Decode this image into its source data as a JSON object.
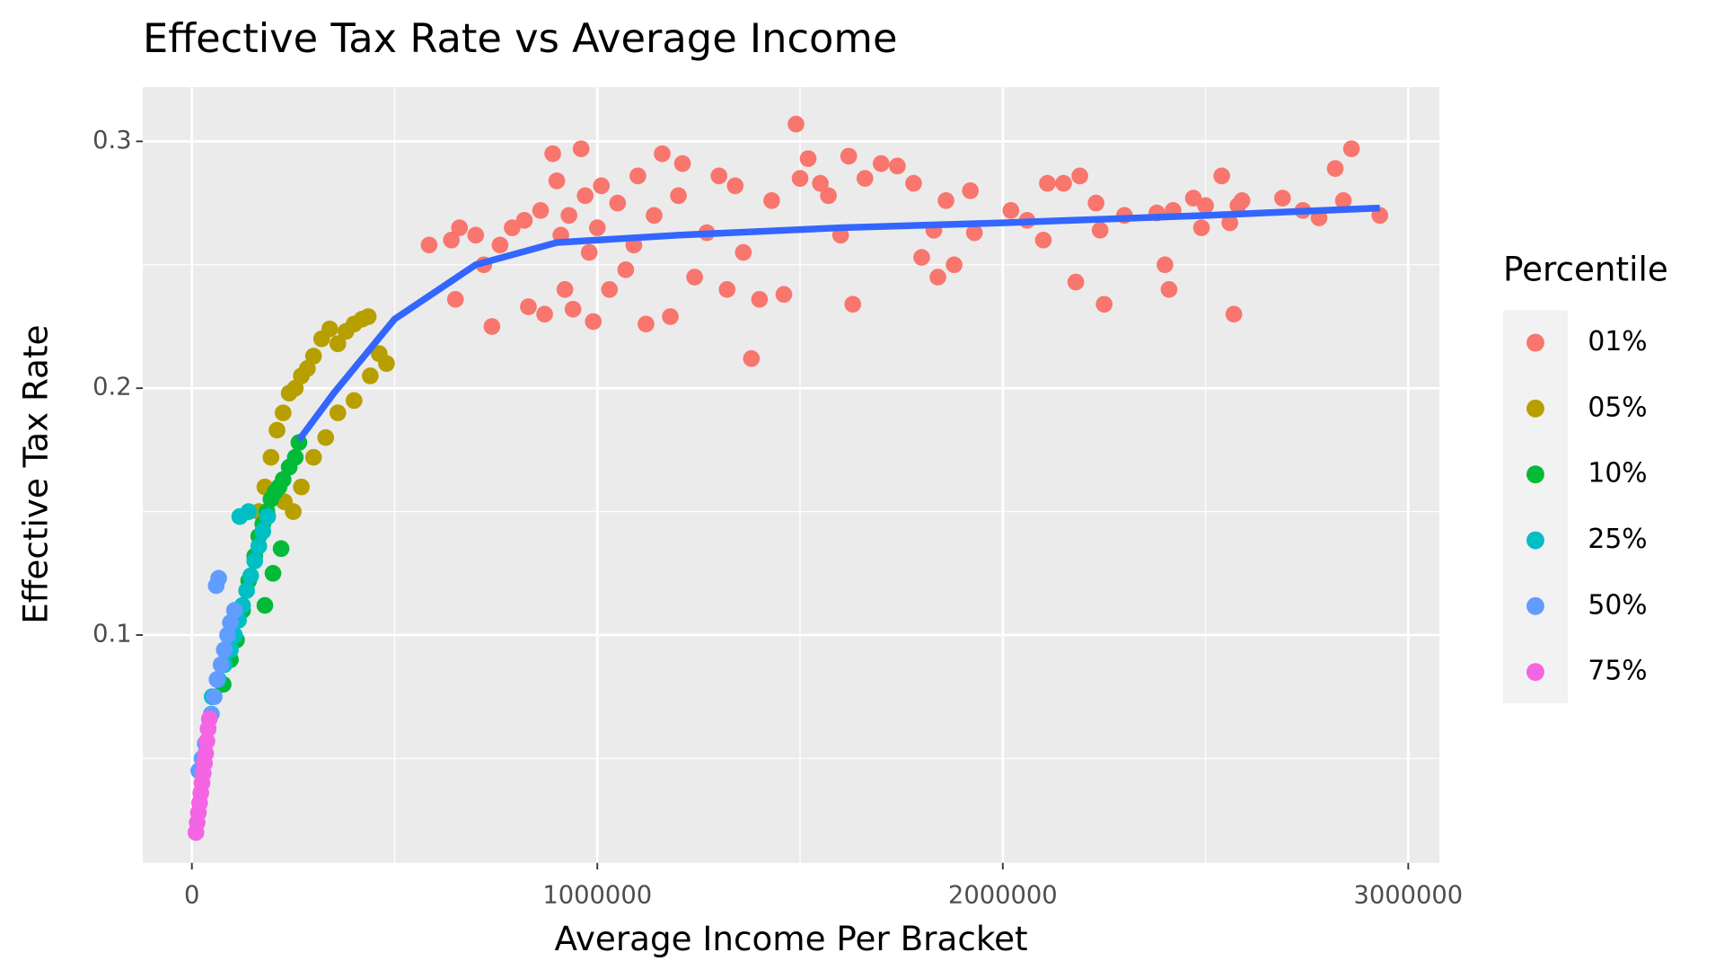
{
  "chart_data": {
    "type": "scatter",
    "title": "Effective Tax Rate vs Average Income",
    "x_label": "Average Income Per Bracket",
    "y_label": "Effective Tax Rate",
    "legend_title": "Percentile",
    "legend": "right",
    "grid": true,
    "xlim": [
      -121000,
      3077000
    ],
    "ylim": [
      0.0077,
      0.322
    ],
    "xticks": [
      0,
      1000000,
      2000000,
      3000000
    ],
    "yticks": [
      0.1,
      0.2,
      0.3
    ],
    "xminor": [
      500000,
      1500000,
      2500000
    ],
    "yminor": [
      0.05,
      0.15,
      0.25
    ],
    "series": [
      {
        "name": "01%",
        "color": "#F8766D",
        "x": [
          585000,
          640000,
          660000,
          650000,
          700000,
          720000,
          740000,
          760000,
          790000,
          820000,
          830000,
          860000,
          870000,
          890000,
          900000,
          910000,
          920000,
          930000,
          940000,
          960000,
          970000,
          980000,
          990000,
          1000000,
          1010000,
          1030000,
          1050000,
          1070000,
          1090000,
          1100000,
          1120000,
          1140000,
          1160000,
          1180000,
          1200000,
          1210000,
          1240000,
          1270000,
          1300000,
          1320000,
          1340000,
          1360000,
          1380000,
          1400000,
          1430000,
          1460000,
          1490000,
          1500000,
          1520000,
          1550000,
          1570000,
          1600000,
          1620000,
          1630000,
          1660000,
          1700000,
          1740000,
          1780000,
          1800000,
          1830000,
          1840000,
          1860000,
          1880000,
          1920000,
          1930000,
          2020000,
          2060000,
          2100000,
          2110000,
          2150000,
          2180000,
          2190000,
          2230000,
          2240000,
          2250000,
          2300000,
          2380000,
          2420000,
          2400000,
          2410000,
          2470000,
          2490000,
          2500000,
          2540000,
          2560000,
          2570000,
          2580000,
          2590000,
          2690000,
          2740000,
          2780000,
          2820000,
          2840000,
          2860000,
          2930000
        ],
        "values": [
          0.258,
          0.26,
          0.265,
          0.236,
          0.262,
          0.25,
          0.225,
          0.258,
          0.265,
          0.268,
          0.233,
          0.272,
          0.23,
          0.295,
          0.284,
          0.262,
          0.24,
          0.27,
          0.232,
          0.297,
          0.278,
          0.255,
          0.227,
          0.265,
          0.282,
          0.24,
          0.275,
          0.248,
          0.258,
          0.286,
          0.226,
          0.27,
          0.295,
          0.229,
          0.278,
          0.291,
          0.245,
          0.263,
          0.286,
          0.24,
          0.282,
          0.255,
          0.212,
          0.236,
          0.276,
          0.238,
          0.307,
          0.285,
          0.293,
          0.283,
          0.278,
          0.262,
          0.294,
          0.234,
          0.285,
          0.291,
          0.29,
          0.283,
          0.253,
          0.264,
          0.245,
          0.276,
          0.25,
          0.28,
          0.263,
          0.272,
          0.268,
          0.26,
          0.283,
          0.283,
          0.243,
          0.286,
          0.275,
          0.264,
          0.234,
          0.27,
          0.271,
          0.272,
          0.25,
          0.24,
          0.277,
          0.265,
          0.274,
          0.286,
          0.267,
          0.23,
          0.274,
          0.276,
          0.277,
          0.272,
          0.269,
          0.289,
          0.276,
          0.297,
          0.27
        ]
      },
      {
        "name": "05%",
        "color": "#B79F00",
        "x": [
          165000,
          180000,
          195000,
          210000,
          225000,
          240000,
          255000,
          270000,
          285000,
          300000,
          320000,
          340000,
          360000,
          380000,
          400000,
          420000,
          435000,
          228000,
          250000,
          270000,
          300000,
          330000,
          360000,
          400000,
          440000,
          462000,
          480000
        ],
        "values": [
          0.15,
          0.16,
          0.172,
          0.183,
          0.19,
          0.198,
          0.2,
          0.205,
          0.208,
          0.213,
          0.22,
          0.224,
          0.218,
          0.223,
          0.226,
          0.228,
          0.229,
          0.154,
          0.15,
          0.16,
          0.172,
          0.18,
          0.19,
          0.195,
          0.205,
          0.214,
          0.21
        ]
      },
      {
        "name": "10%",
        "color": "#00BA38",
        "x": [
          77000,
          95000,
          110000,
          125000,
          140000,
          155000,
          165000,
          175000,
          185000,
          195000,
          205000,
          215000,
          225000,
          240000,
          255000,
          264000,
          180000,
          200000,
          220000
        ],
        "values": [
          0.08,
          0.09,
          0.098,
          0.11,
          0.122,
          0.132,
          0.14,
          0.145,
          0.15,
          0.155,
          0.158,
          0.16,
          0.163,
          0.168,
          0.172,
          0.178,
          0.112,
          0.125,
          0.135
        ]
      },
      {
        "name": "25%",
        "color": "#00BFC4",
        "x": [
          50000,
          65000,
          80000,
          95000,
          105000,
          115000,
          125000,
          135000,
          145000,
          155000,
          165000,
          175000,
          187000,
          118000,
          140000
        ],
        "values": [
          0.075,
          0.082,
          0.088,
          0.094,
          0.1,
          0.106,
          0.112,
          0.118,
          0.124,
          0.13,
          0.136,
          0.142,
          0.148,
          0.148,
          0.15
        ]
      },
      {
        "name": "50%",
        "color": "#619CFF",
        "x": [
          17000,
          25000,
          33000,
          40000,
          48000,
          55000,
          62000,
          66000,
          72000,
          80000,
          88000,
          95000,
          105000,
          60000
        ],
        "values": [
          0.045,
          0.05,
          0.056,
          0.062,
          0.068,
          0.075,
          0.082,
          0.123,
          0.088,
          0.094,
          0.1,
          0.105,
          0.11,
          0.12
        ]
      },
      {
        "name": "75%",
        "color": "#F564E3",
        "x": [
          10000,
          13000,
          16000,
          19000,
          22000,
          25000,
          28000,
          31000,
          34000,
          37000,
          40000,
          43000
        ],
        "values": [
          0.02,
          0.024,
          0.028,
          0.032,
          0.036,
          0.04,
          0.044,
          0.048,
          0.052,
          0.057,
          0.062,
          0.066
        ]
      }
    ],
    "trend": {
      "color": "#3366FF",
      "x": [
        264000,
        350000,
        500000,
        700000,
        900000,
        1200000,
        1600000,
        2000000,
        2500000,
        2930000
      ],
      "values": [
        0.179,
        0.198,
        0.228,
        0.25,
        0.259,
        0.262,
        0.265,
        0.267,
        0.27,
        0.273
      ]
    }
  }
}
